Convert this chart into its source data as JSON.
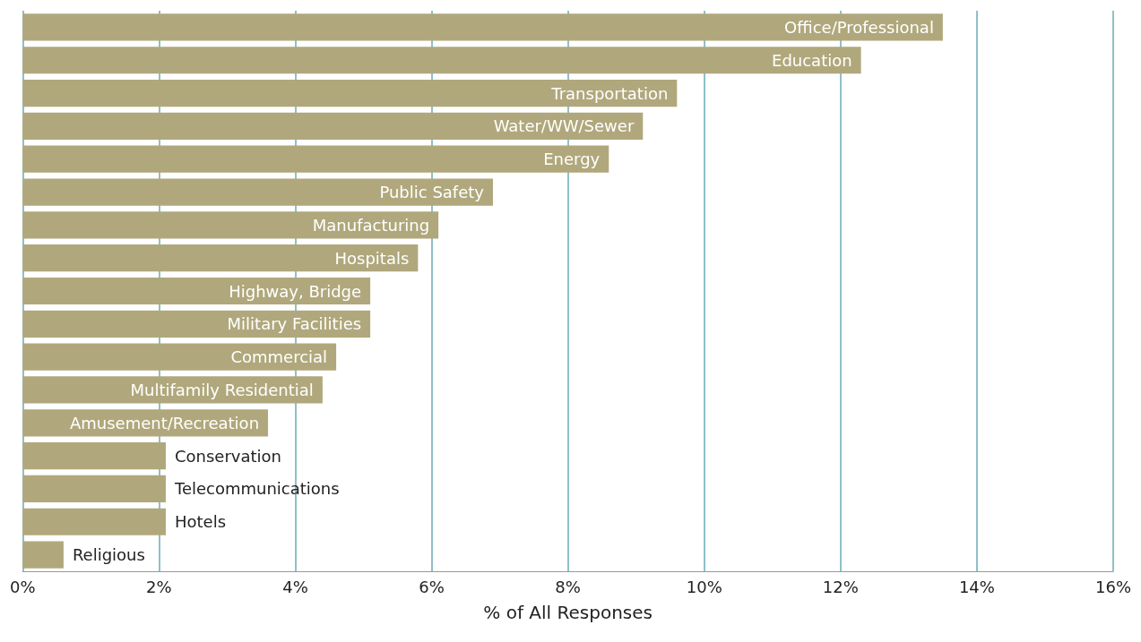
{
  "chart_data": {
    "type": "bar",
    "orientation": "horizontal",
    "xlabel": "% of All Responses",
    "categories": [
      "Office/Professional",
      "Education",
      "Transportation",
      "Water/WW/Sewer",
      "Energy",
      "Public Safety",
      "Manufacturing",
      "Hospitals",
      "Highway, Bridge",
      "Military Facilities",
      "Commercial",
      "Multifamily Residential",
      "Amusement/Recreation",
      "Conservation",
      "Telecommunications",
      "Hotels",
      "Religious"
    ],
    "values": [
      13.5,
      12.3,
      9.6,
      9.1,
      8.6,
      6.9,
      6.1,
      5.8,
      5.1,
      5.1,
      4.6,
      4.4,
      3.6,
      2.1,
      2.1,
      2.1,
      0.6
    ],
    "color": "#b0a87c",
    "xlim": [
      0,
      16
    ],
    "xticks": [
      {
        "value": 0,
        "label": "0%"
      },
      {
        "value": 2,
        "label": "2%"
      },
      {
        "value": 4,
        "label": "4%"
      },
      {
        "value": 6,
        "label": "6%"
      },
      {
        "value": 8,
        "label": "8%"
      },
      {
        "value": 10,
        "label": "10%"
      },
      {
        "value": 12,
        "label": "12%"
      },
      {
        "value": 14,
        "label": "14%"
      },
      {
        "value": 16,
        "label": "16%"
      }
    ],
    "grid": "x",
    "tick_labels": "x"
  }
}
